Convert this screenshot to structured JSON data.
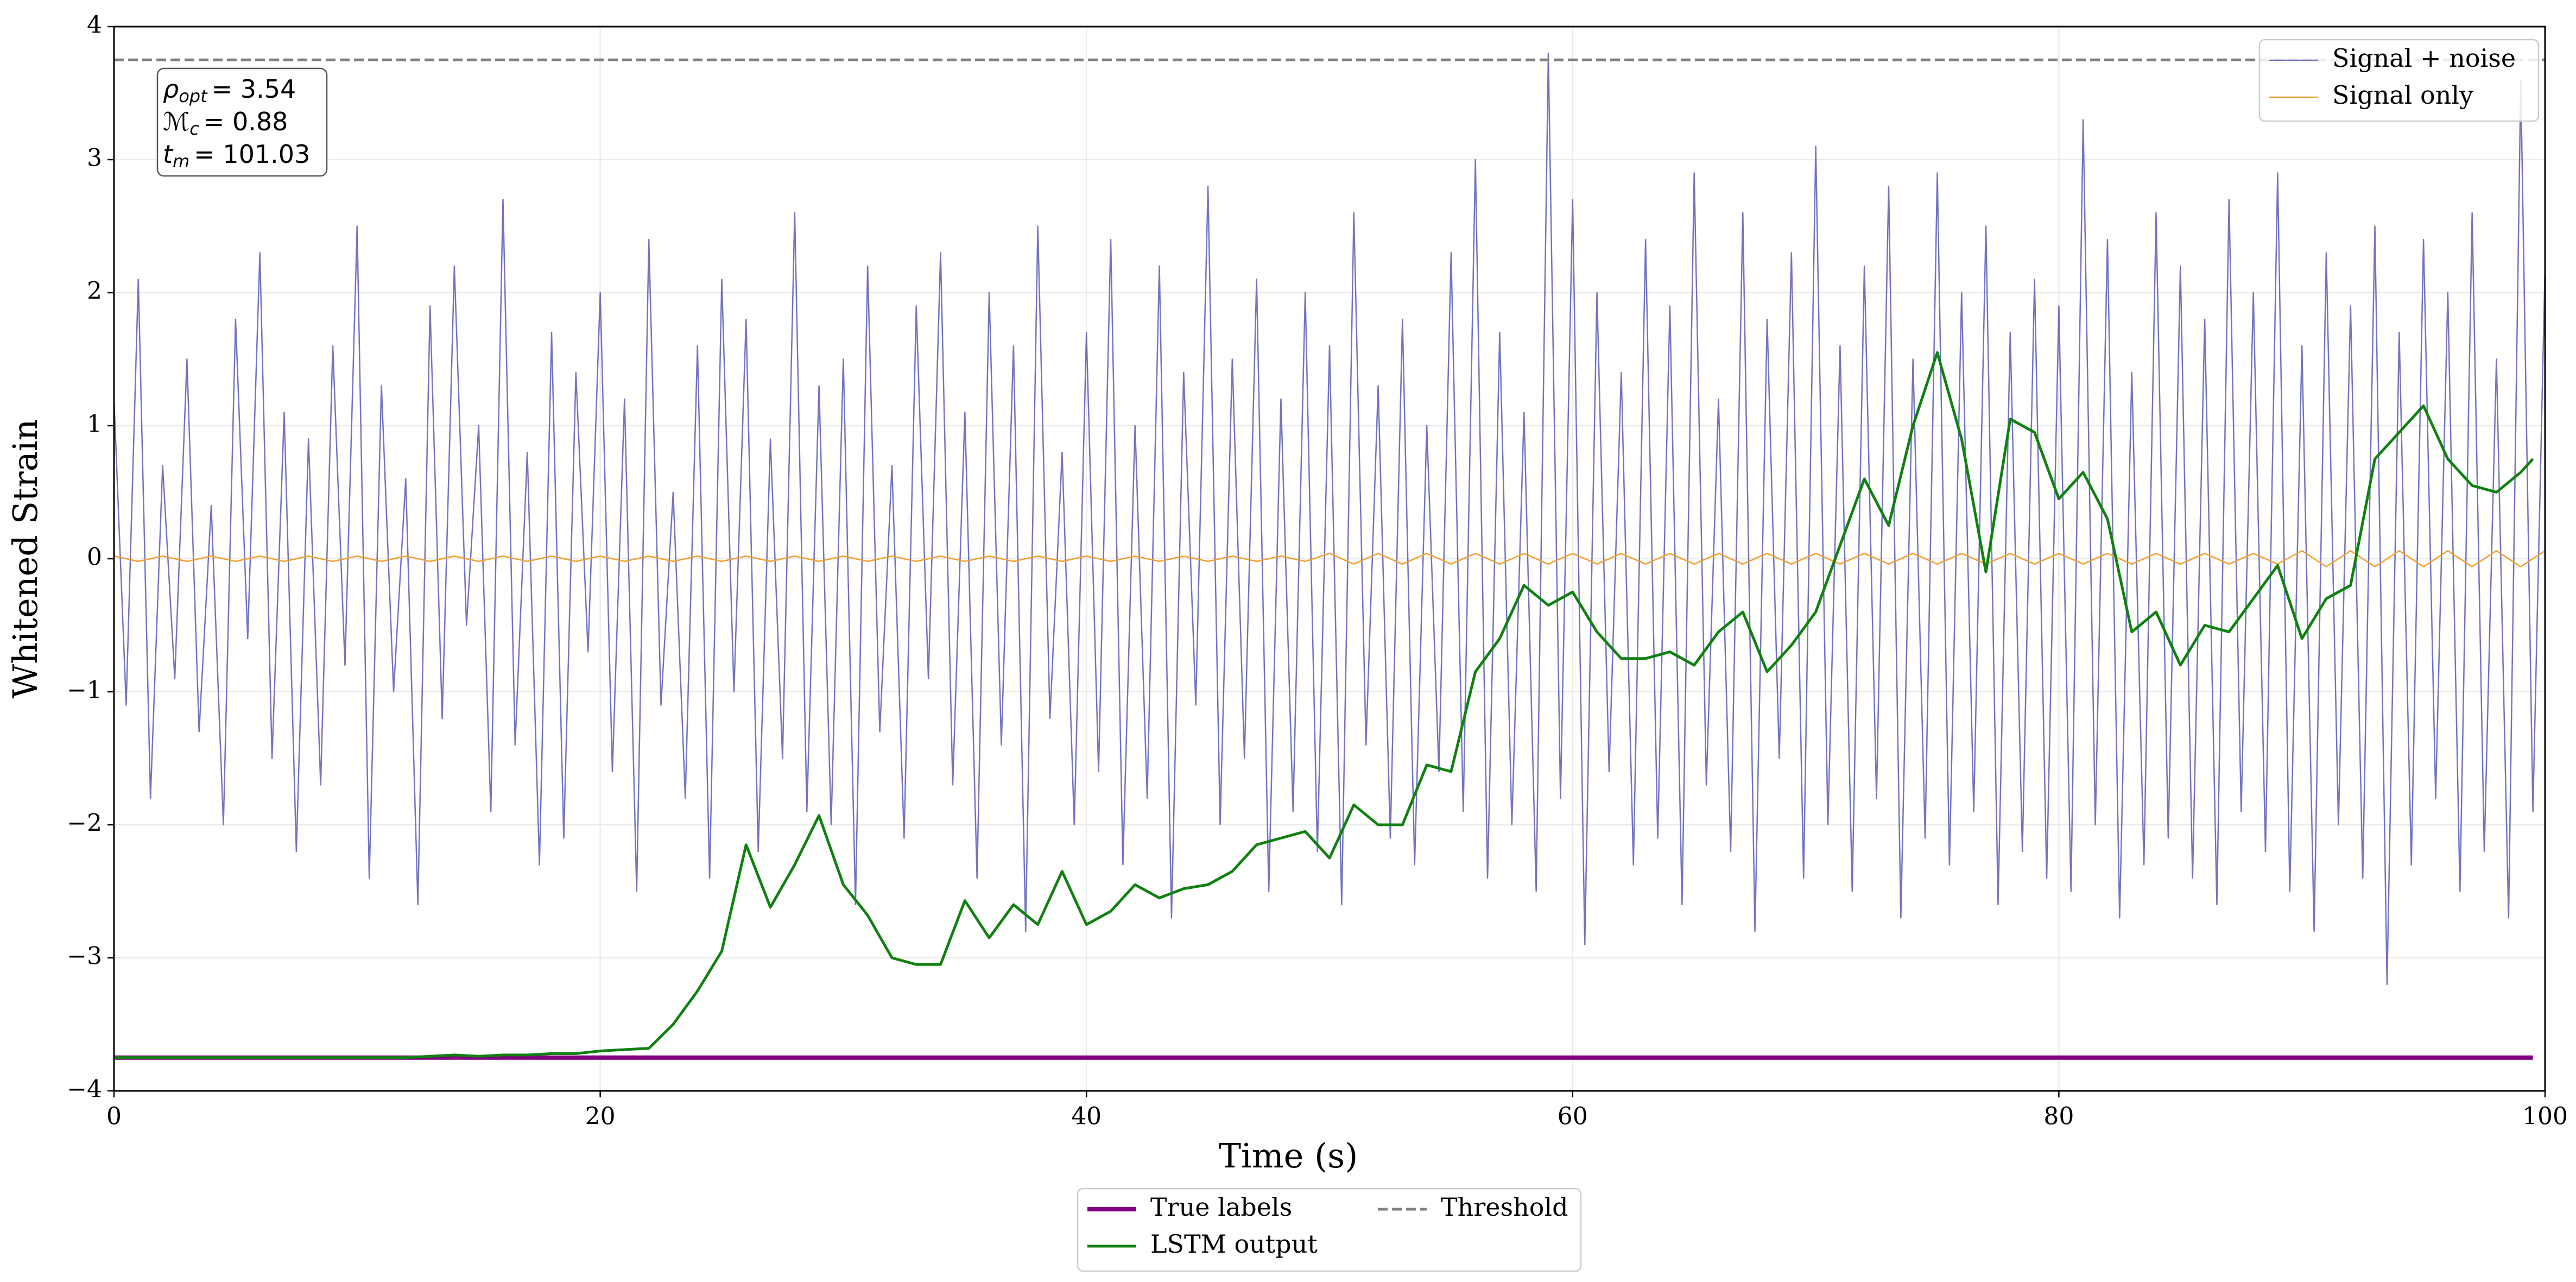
{
  "chart_data": {
    "type": "line",
    "xlabel": "Time (s)",
    "ylabel": "Whitened Strain",
    "xlim": [
      0,
      100
    ],
    "ylim": [
      -4,
      4
    ],
    "xticks": [
      0,
      20,
      40,
      60,
      80,
      100
    ],
    "yticks": [
      {
        "value": -4,
        "label": "−4"
      },
      {
        "value": -3,
        "label": "−3"
      },
      {
        "value": -2,
        "label": "−2"
      },
      {
        "value": -1,
        "label": "−1"
      },
      0,
      1,
      2,
      3,
      4
    ],
    "grid": true,
    "annotations": [
      {
        "symbol": "ρ",
        "subscript": "opt",
        "text": "= 3.54"
      },
      {
        "symbol": "ℳ",
        "subscript": "c",
        "text": "= 0.88"
      },
      {
        "symbol": "t",
        "subscript": "m",
        "text": "= 101.03"
      }
    ],
    "series": [
      {
        "name": "Signal + noise",
        "color": "#5b5bb8",
        "width": 2.5,
        "opacity": 0.85,
        "legend": "upper right",
        "step_x": 0.5,
        "x": [
          0,
          0.5,
          1,
          1.5,
          2,
          2.5,
          3,
          3.5,
          4,
          4.5,
          5,
          5.5,
          6,
          6.5,
          7,
          7.5,
          8,
          8.5,
          9,
          9.5,
          10,
          10.5,
          11,
          11.5,
          12,
          12.5,
          13,
          13.5,
          14,
          14.5,
          15,
          15.5,
          16,
          16.5,
          17,
          17.5,
          18,
          18.5,
          19,
          19.5,
          20,
          20.5,
          21,
          21.5,
          22,
          22.5,
          23,
          23.5,
          24,
          24.5,
          25,
          25.5,
          26,
          26.5,
          27,
          27.5,
          28,
          28.5,
          29,
          29.5,
          30,
          30.5,
          31,
          31.5,
          32,
          32.5,
          33,
          33.5,
          34,
          34.5,
          35,
          35.5,
          36,
          36.5,
          37,
          37.5,
          38,
          38.5,
          39,
          39.5,
          40,
          40.5,
          41,
          41.5,
          42,
          42.5,
          43,
          43.5,
          44,
          44.5,
          45,
          45.5,
          46,
          46.5,
          47,
          47.5,
          48,
          48.5,
          49,
          49.5,
          50,
          50.5,
          51,
          51.5,
          52,
          52.5,
          53,
          53.5,
          54,
          54.5,
          55,
          55.5,
          56,
          56.5,
          57,
          57.5,
          58,
          58.5,
          59,
          59.5,
          60,
          60.5,
          61,
          61.5,
          62,
          62.5,
          63,
          63.5,
          64,
          64.5,
          65,
          65.5,
          66,
          66.5,
          67,
          67.5,
          68,
          68.5,
          69,
          69.5,
          70,
          70.5,
          71,
          71.5,
          72,
          72.5,
          73,
          73.5,
          74,
          74.5,
          75,
          75.5,
          76,
          76.5,
          77,
          77.5,
          78,
          78.5,
          79,
          79.5,
          80,
          80.5,
          81,
          81.5,
          82,
          82.5,
          83,
          83.5,
          84,
          84.5,
          85,
          85.5,
          86,
          86.5,
          87,
          87.5,
          88,
          88.5,
          89,
          89.5,
          90,
          90.5,
          91,
          91.5,
          92,
          92.5,
          93,
          93.5,
          94,
          94.5,
          95,
          95.5,
          96,
          96.5,
          97,
          97.5,
          98,
          98.5,
          99,
          99.5,
          100
        ],
        "values": [
          1.2,
          -1.1,
          2.1,
          -1.8,
          0.7,
          -0.9,
          1.5,
          -1.3,
          0.4,
          -2.0,
          1.8,
          -0.6,
          2.3,
          -1.5,
          1.1,
          -2.2,
          0.9,
          -1.7,
          1.6,
          -0.8,
          2.5,
          -2.4,
          1.3,
          -1.0,
          0.6,
          -2.6,
          1.9,
          -1.2,
          2.2,
          -0.5,
          1.0,
          -1.9,
          2.7,
          -1.4,
          0.8,
          -2.3,
          1.7,
          -2.1,
          1.4,
          -0.7,
          2.0,
          -1.6,
          1.2,
          -2.5,
          2.4,
          -1.1,
          0.5,
          -1.8,
          1.6,
          -2.4,
          2.1,
          -1.0,
          1.8,
          -2.2,
          0.9,
          -1.5,
          2.6,
          -1.9,
          1.3,
          -2.0,
          1.5,
          -2.6,
          2.2,
          -1.3,
          0.7,
          -2.1,
          1.9,
          -0.9,
          2.3,
          -1.7,
          1.1,
          -2.4,
          2.0,
          -1.4,
          1.6,
          -2.8,
          2.5,
          -1.2,
          0.8,
          -2.0,
          1.7,
          -1.6,
          2.4,
          -2.3,
          1.0,
          -1.8,
          2.2,
          -2.7,
          1.4,
          -1.1,
          2.8,
          -2.0,
          1.5,
          -1.5,
          2.1,
          -2.5,
          1.2,
          -1.9,
          2.0,
          -2.2,
          1.6,
          -2.6,
          2.6,
          -1.4,
          1.3,
          -2.1,
          1.8,
          -2.3,
          1.0,
          -1.6,
          2.3,
          -1.9,
          3.0,
          -2.4,
          1.7,
          -2.0,
          1.1,
          -2.5,
          3.8,
          -1.8,
          2.7,
          -2.9,
          2.0,
          -1.6,
          1.4,
          -2.3,
          2.4,
          -2.1,
          1.9,
          -2.6,
          2.9,
          -1.7,
          1.2,
          -2.2,
          2.6,
          -2.8,
          1.8,
          -1.5,
          2.3,
          -2.4,
          3.1,
          -2.0,
          1.6,
          -2.5,
          2.2,
          -1.8,
          2.8,
          -2.7,
          1.5,
          -2.1,
          2.9,
          -2.3,
          2.0,
          -1.9,
          2.5,
          -2.6,
          1.7,
          -2.2,
          2.1,
          -2.4,
          1.9,
          -2.5,
          3.3,
          -2.0,
          2.4,
          -2.7,
          1.4,
          -2.3,
          2.6,
          -2.1,
          2.2,
          -2.4,
          1.8,
          -2.6,
          2.7,
          -1.9,
          2.0,
          -2.2,
          2.9,
          -2.5,
          1.6,
          -2.8,
          2.3,
          -2.0,
          1.9,
          -2.4,
          2.5,
          -3.2,
          1.7,
          -2.3,
          2.4,
          -1.8,
          2.0,
          -2.5,
          2.6,
          -2.2,
          1.5,
          -2.7,
          3.6,
          -1.9,
          2.2
        ]
      },
      {
        "name": "Signal only",
        "color": "#f0a030",
        "width": 2.5,
        "opacity": 1,
        "legend": "upper right",
        "x": [
          0,
          1,
          2,
          3,
          4,
          5,
          6,
          7,
          8,
          9,
          10,
          11,
          12,
          13,
          14,
          15,
          16,
          17,
          18,
          19,
          20,
          21,
          22,
          23,
          24,
          25,
          26,
          27,
          28,
          29,
          30,
          31,
          32,
          33,
          34,
          35,
          36,
          37,
          38,
          39,
          40,
          41,
          42,
          43,
          44,
          45,
          46,
          47,
          48,
          49,
          50,
          51,
          52,
          53,
          54,
          55,
          56,
          57,
          58,
          59,
          60,
          61,
          62,
          63,
          64,
          65,
          66,
          67,
          68,
          69,
          70,
          71,
          72,
          73,
          74,
          75,
          76,
          77,
          78,
          79,
          80,
          81,
          82,
          83,
          84,
          85,
          86,
          87,
          88,
          89,
          90,
          91,
          92,
          93,
          94,
          95,
          96,
          97,
          98,
          99,
          100
        ],
        "values": [
          0.02,
          -0.02,
          0.02,
          -0.02,
          0.02,
          -0.02,
          0.02,
          -0.02,
          0.02,
          -0.02,
          0.02,
          -0.02,
          0.02,
          -0.02,
          0.02,
          -0.02,
          0.02,
          -0.02,
          0.02,
          -0.02,
          0.02,
          -0.02,
          0.02,
          -0.02,
          0.02,
          -0.02,
          0.02,
          -0.02,
          0.02,
          -0.02,
          0.02,
          -0.02,
          0.02,
          -0.02,
          0.02,
          -0.02,
          0.02,
          -0.02,
          0.02,
          -0.02,
          0.02,
          -0.02,
          0.02,
          -0.02,
          0.02,
          -0.02,
          0.02,
          -0.02,
          0.02,
          -0.02,
          0.04,
          -0.04,
          0.04,
          -0.04,
          0.04,
          -0.04,
          0.04,
          -0.04,
          0.04,
          -0.04,
          0.04,
          -0.04,
          0.04,
          -0.04,
          0.04,
          -0.04,
          0.04,
          -0.04,
          0.04,
          -0.04,
          0.04,
          -0.04,
          0.04,
          -0.04,
          0.04,
          -0.04,
          0.04,
          -0.04,
          0.04,
          -0.04,
          0.04,
          -0.04,
          0.04,
          -0.04,
          0.04,
          -0.04,
          0.04,
          -0.04,
          0.04,
          -0.04,
          0.06,
          -0.06,
          0.06,
          -0.06,
          0.06,
          -0.06,
          0.06,
          -0.06,
          0.06,
          -0.06,
          0.06
        ]
      },
      {
        "name": "True labels",
        "color": "#800080",
        "width": 8,
        "opacity": 1,
        "legend": "below",
        "x": [
          0,
          99.5
        ],
        "values": [
          -3.75,
          -3.75
        ]
      },
      {
        "name": "LSTM output",
        "color": "#108010",
        "width": 5,
        "opacity": 1,
        "legend": "below",
        "x": [
          0,
          1,
          2,
          3,
          4,
          5,
          6,
          7,
          8,
          9,
          10,
          11,
          12,
          13,
          14,
          15,
          16,
          17,
          18,
          19,
          20,
          21,
          22,
          23,
          24,
          25,
          26,
          27,
          28,
          29,
          30,
          31,
          32,
          33,
          34,
          35,
          36,
          37,
          38,
          39,
          40,
          41,
          42,
          43,
          44,
          45,
          46,
          47,
          48,
          49,
          50,
          51,
          52,
          53,
          54,
          55,
          56,
          57,
          58,
          59,
          60,
          61,
          62,
          63,
          64,
          65,
          66,
          67,
          68,
          69,
          70,
          71,
          72,
          73,
          74,
          75,
          76,
          77,
          78,
          79,
          80,
          81,
          82,
          83,
          84,
          85,
          86,
          87,
          88,
          89,
          90,
          91,
          92,
          93,
          94,
          95,
          96,
          97,
          98,
          99,
          99.5
        ],
        "values": [
          -3.75,
          -3.75,
          -3.75,
          -3.75,
          -3.75,
          -3.75,
          -3.75,
          -3.75,
          -3.75,
          -3.75,
          -3.75,
          -3.75,
          -3.75,
          -3.74,
          -3.73,
          -3.74,
          -3.73,
          -3.73,
          -3.72,
          -3.72,
          -3.7,
          -3.69,
          -3.68,
          -3.5,
          -3.25,
          -2.95,
          -2.15,
          -2.62,
          -2.3,
          -1.93,
          -2.45,
          -2.68,
          -3.0,
          -3.05,
          -3.05,
          -2.57,
          -2.85,
          -2.6,
          -2.75,
          -2.35,
          -2.75,
          -2.65,
          -2.45,
          -2.55,
          -2.48,
          -2.45,
          -2.35,
          -2.15,
          -2.1,
          -2.05,
          -2.25,
          -1.85,
          -2.0,
          -2.0,
          -1.55,
          -1.6,
          -0.85,
          -0.6,
          -0.2,
          -0.35,
          -0.25,
          -0.55,
          -0.75,
          -0.75,
          -0.7,
          -0.8,
          -0.55,
          -0.4,
          -0.85,
          -0.65,
          -0.4,
          0.1,
          0.6,
          0.25,
          1.0,
          1.55,
          0.9,
          -0.1,
          1.05,
          0.95,
          0.45,
          0.65,
          0.3,
          -0.55,
          -0.4,
          -0.8,
          -0.5,
          -0.55,
          -0.3,
          -0.05,
          -0.6,
          -0.3,
          -0.2,
          0.75,
          0.95,
          1.15,
          0.75,
          0.55,
          0.5,
          0.65,
          0.75
        ]
      },
      {
        "name": "Threshold",
        "color": "#808080",
        "width": 5,
        "opacity": 1,
        "legend": "below",
        "dashed": true,
        "x": [
          0,
          100
        ],
        "values": [
          3.75,
          3.75
        ]
      }
    ]
  }
}
